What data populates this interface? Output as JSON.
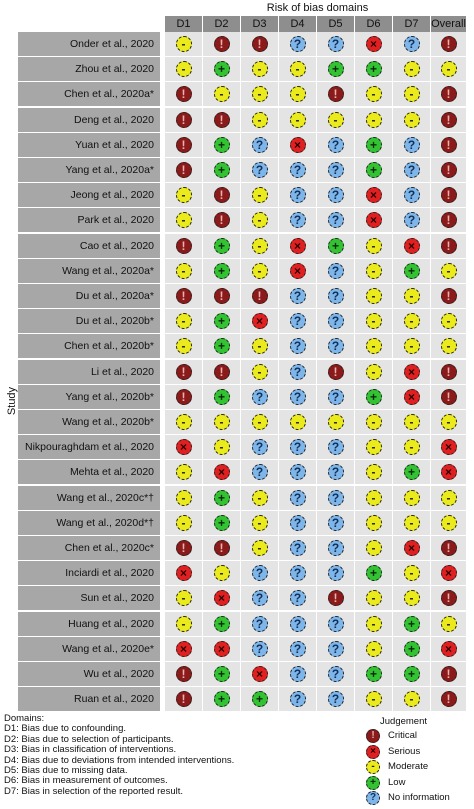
{
  "title": "Risk of bias domains",
  "y_label": "Study",
  "columns": [
    "D1",
    "D2",
    "D3",
    "D4",
    "D5",
    "D6",
    "D7",
    "Overall"
  ],
  "symbols": {
    "critical": "!",
    "serious": "×",
    "moderate": "-",
    "low": "+",
    "noinfo": "?"
  },
  "colors": {
    "critical": "#8b1a1a",
    "serious": "#e02020",
    "moderate": "#eaea1c",
    "low": "#32c232",
    "noinfo": "#7fb6ea",
    "header": "#8e8e8e",
    "study_cell": "#a7a7a7",
    "cell": "#e4e4e4"
  },
  "chart_data": {
    "type": "table",
    "studies": [
      {
        "name": "Onder et al., 2020",
        "j": [
          "moderate",
          "critical",
          "critical",
          "noinfo",
          "noinfo",
          "serious",
          "noinfo",
          "critical"
        ]
      },
      {
        "name": "Zhou et al., 2020",
        "j": [
          "moderate",
          "low",
          "moderate",
          "moderate",
          "low",
          "low",
          "moderate",
          "moderate"
        ]
      },
      {
        "name": "Chen et al., 2020a*",
        "j": [
          "critical",
          "moderate",
          "moderate",
          "moderate",
          "critical",
          "moderate",
          "moderate",
          "critical"
        ]
      },
      {
        "name": "Deng et al., 2020",
        "j": [
          "critical",
          "critical",
          "moderate",
          "moderate",
          "moderate",
          "moderate",
          "moderate",
          "critical"
        ]
      },
      {
        "name": "Yuan et al., 2020",
        "j": [
          "critical",
          "low",
          "noinfo",
          "serious",
          "noinfo",
          "low",
          "noinfo",
          "critical"
        ]
      },
      {
        "name": "Yang et al., 2020a*",
        "j": [
          "critical",
          "low",
          "noinfo",
          "noinfo",
          "noinfo",
          "low",
          "noinfo",
          "critical"
        ]
      },
      {
        "name": "Jeong et al., 2020",
        "j": [
          "moderate",
          "critical",
          "moderate",
          "noinfo",
          "noinfo",
          "serious",
          "noinfo",
          "critical"
        ]
      },
      {
        "name": "Park et al., 2020",
        "j": [
          "moderate",
          "critical",
          "moderate",
          "noinfo",
          "noinfo",
          "serious",
          "noinfo",
          "critical"
        ]
      },
      {
        "name": "Cao et al., 2020",
        "j": [
          "critical",
          "low",
          "moderate",
          "serious",
          "low",
          "moderate",
          "serious",
          "critical"
        ]
      },
      {
        "name": "Wang et al., 2020a*",
        "j": [
          "moderate",
          "low",
          "moderate",
          "serious",
          "noinfo",
          "moderate",
          "low",
          "moderate"
        ]
      },
      {
        "name": "Du et al., 2020a*",
        "j": [
          "critical",
          "critical",
          "critical",
          "noinfo",
          "noinfo",
          "moderate",
          "moderate",
          "critical"
        ]
      },
      {
        "name": "Du et al., 2020b*",
        "j": [
          "moderate",
          "low",
          "serious",
          "noinfo",
          "noinfo",
          "moderate",
          "moderate",
          "moderate"
        ]
      },
      {
        "name": "Chen et al., 2020b*",
        "j": [
          "moderate",
          "low",
          "moderate",
          "noinfo",
          "noinfo",
          "moderate",
          "moderate",
          "moderate"
        ]
      },
      {
        "name": "Li et al., 2020",
        "j": [
          "critical",
          "critical",
          "moderate",
          "noinfo",
          "critical",
          "moderate",
          "serious",
          "critical"
        ]
      },
      {
        "name": "Yang et al., 2020b*",
        "j": [
          "critical",
          "low",
          "noinfo",
          "noinfo",
          "noinfo",
          "low",
          "serious",
          "critical"
        ]
      },
      {
        "name": "Wang et al., 2020b*",
        "j": [
          "moderate",
          "moderate",
          "moderate",
          "moderate",
          "moderate",
          "moderate",
          "moderate",
          "moderate"
        ]
      },
      {
        "name": "Nikpouraghdam et al., 2020",
        "j": [
          "serious",
          "moderate",
          "noinfo",
          "noinfo",
          "noinfo",
          "moderate",
          "moderate",
          "serious"
        ]
      },
      {
        "name": "Mehta et al., 2020",
        "j": [
          "moderate",
          "serious",
          "noinfo",
          "noinfo",
          "noinfo",
          "moderate",
          "low",
          "serious"
        ]
      },
      {
        "name": "Wang et al., 2020c*†",
        "j": [
          "moderate",
          "low",
          "moderate",
          "noinfo",
          "noinfo",
          "moderate",
          "moderate",
          "moderate"
        ]
      },
      {
        "name": "Wang et al., 2020d*†",
        "j": [
          "moderate",
          "low",
          "moderate",
          "noinfo",
          "noinfo",
          "moderate",
          "moderate",
          "moderate"
        ]
      },
      {
        "name": "Chen et al., 2020c*",
        "j": [
          "critical",
          "critical",
          "moderate",
          "noinfo",
          "noinfo",
          "moderate",
          "serious",
          "critical"
        ]
      },
      {
        "name": "Inciardi et al., 2020",
        "j": [
          "serious",
          "moderate",
          "noinfo",
          "noinfo",
          "noinfo",
          "low",
          "moderate",
          "serious"
        ]
      },
      {
        "name": "Sun et al., 2020",
        "j": [
          "moderate",
          "serious",
          "noinfo",
          "noinfo",
          "critical",
          "moderate",
          "moderate",
          "critical"
        ]
      },
      {
        "name": "Huang et al., 2020",
        "j": [
          "moderate",
          "low",
          "noinfo",
          "noinfo",
          "noinfo",
          "moderate",
          "low",
          "moderate"
        ]
      },
      {
        "name": "Wang et al., 2020e*",
        "j": [
          "serious",
          "serious",
          "noinfo",
          "noinfo",
          "noinfo",
          "moderate",
          "low",
          "serious"
        ]
      },
      {
        "name": "Wu et al., 2020",
        "j": [
          "critical",
          "low",
          "serious",
          "noinfo",
          "noinfo",
          "low",
          "low",
          "critical"
        ]
      },
      {
        "name": "Ruan et al., 2020",
        "j": [
          "critical",
          "low",
          "low",
          "noinfo",
          "noinfo",
          "moderate",
          "moderate",
          "critical"
        ]
      }
    ]
  },
  "domains": {
    "heading": "Domains:",
    "items": [
      "D1: Bias due to confounding.",
      "D2: Bias due to selection of participants.",
      "D3: Bias in classification of interventions.",
      "D4: Bias due to deviations from intended interventions.",
      "D5: Bias due to missing data.",
      "D6: Bias in measurement of outcomes.",
      "D7: Bias in selection of the reported result."
    ]
  },
  "legend": {
    "title": "Judgement",
    "items": [
      {
        "key": "critical",
        "label": "Critical"
      },
      {
        "key": "serious",
        "label": "Serious"
      },
      {
        "key": "moderate",
        "label": "Moderate"
      },
      {
        "key": "low",
        "label": "Low"
      },
      {
        "key": "noinfo",
        "label": "No information"
      }
    ]
  }
}
